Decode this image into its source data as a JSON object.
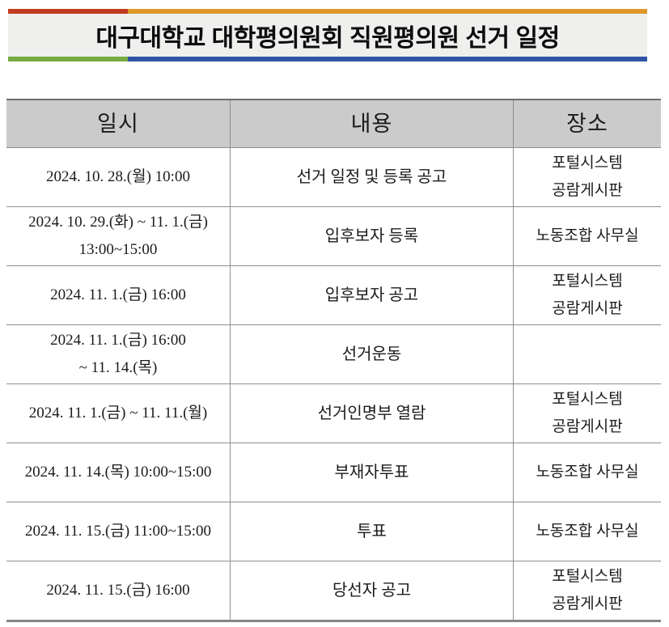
{
  "banner": {
    "title": "대구대학교 대학평의원회 직원평의원 선거 일정",
    "colors": {
      "red": "#C33B1F",
      "orange": "#DD9829",
      "green": "#76AC42",
      "blue": "#2D55A4",
      "banner_background": "#EFEFEE",
      "table_header_background": "#CBCBCB"
    }
  },
  "table": {
    "headers": [
      "일시",
      "내용",
      "장소"
    ],
    "rows": [
      {
        "datetime": "2024.  10.  28.(월)  10:00",
        "content": "선거  일정  및  등록  공고",
        "place": "포털시스템\n공람게시판"
      },
      {
        "datetime": "2024.  10.  29.(화)  ~  11.  1.(금)\n13:00~15:00",
        "content": "입후보자  등록",
        "place": "노동조합  사무실"
      },
      {
        "datetime": "2024.  11.  1.(금)  16:00",
        "content": "입후보자  공고",
        "place": "포털시스템\n공람게시판"
      },
      {
        "datetime": "2024.  11.  1.(금)  16:00\n~  11.  14.(목)",
        "content": "선거운동",
        "place": ""
      },
      {
        "datetime": "2024.  11.  1.(금)  ~  11.  11.(월)",
        "content": "선거인명부  열람",
        "place": "포털시스템\n공람게시판"
      },
      {
        "datetime": "2024.  11.  14.(목)  10:00~15:00",
        "content": "부재자투표",
        "place": "노동조합  사무실"
      },
      {
        "datetime": "2024.  11.  15.(금)  11:00~15:00",
        "content": "투표",
        "place": "노동조합  사무실"
      },
      {
        "datetime": "2024.  11.  15.(금)  16:00",
        "content": "당선자  공고",
        "place": "포털시스템\n공람게시판"
      }
    ]
  }
}
